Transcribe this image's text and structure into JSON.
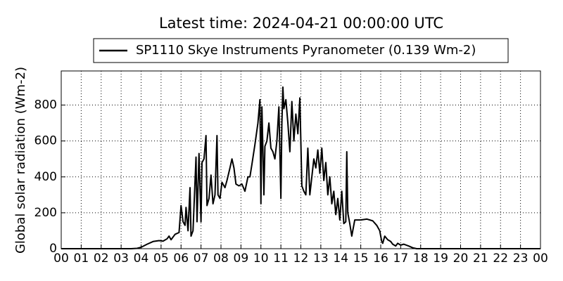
{
  "chart_data": {
    "type": "line",
    "title": "Latest time: 2024-04-21 00:00:00 UTC",
    "ylabel": "Global solar radiation (Wm-2)",
    "x": [
      0,
      3.5,
      3.8,
      4.0,
      4.3,
      4.6,
      4.9,
      5.1,
      5.3,
      5.4,
      5.5,
      5.7,
      5.9,
      6.0,
      6.1,
      6.2,
      6.25,
      6.35,
      6.45,
      6.5,
      6.6,
      6.75,
      6.8,
      6.9,
      7.0,
      7.05,
      7.15,
      7.25,
      7.3,
      7.4,
      7.5,
      7.6,
      7.7,
      7.8,
      7.85,
      7.95,
      8.05,
      8.2,
      8.3,
      8.45,
      8.55,
      8.65,
      8.75,
      8.9,
      9.05,
      9.2,
      9.35,
      9.45,
      9.55,
      9.7,
      9.85,
      9.95,
      10.0,
      10.05,
      10.15,
      10.2,
      10.3,
      10.4,
      10.5,
      10.6,
      10.7,
      10.8,
      10.9,
      11.0,
      11.05,
      11.1,
      11.15,
      11.25,
      11.35,
      11.45,
      11.55,
      11.65,
      11.75,
      11.85,
      11.95,
      12.05,
      12.15,
      12.25,
      12.35,
      12.45,
      12.55,
      12.65,
      12.75,
      12.85,
      12.95,
      13.05,
      13.15,
      13.25,
      13.35,
      13.45,
      13.55,
      13.65,
      13.75,
      13.85,
      13.95,
      14.05,
      14.15,
      14.25,
      14.3,
      14.35,
      14.45,
      14.55,
      14.7,
      15.0,
      15.3,
      15.6,
      15.8,
      15.95,
      16.05,
      16.1,
      16.2,
      16.35,
      16.5,
      16.6,
      16.75,
      16.85,
      17.0,
      17.15,
      17.4,
      17.6,
      17.8,
      24
    ],
    "series": [
      {
        "name": "SP1110 Skye Instruments Pyranometer (0.139 Wm-2)",
        "color": "#000000",
        "values": [
          0,
          0,
          2,
          8,
          25,
          40,
          45,
          42,
          55,
          70,
          50,
          80,
          90,
          240,
          150,
          130,
          230,
          100,
          340,
          70,
          100,
          510,
          150,
          530,
          150,
          480,
          500,
          630,
          240,
          280,
          410,
          250,
          300,
          630,
          300,
          280,
          370,
          340,
          380,
          450,
          500,
          450,
          360,
          350,
          360,
          320,
          400,
          400,
          470,
          580,
          700,
          830,
          250,
          790,
          300,
          570,
          600,
          700,
          560,
          540,
          500,
          600,
          790,
          280,
          700,
          900,
          780,
          830,
          700,
          540,
          820,
          600,
          750,
          640,
          840,
          350,
          320,
          300,
          560,
          300,
          400,
          500,
          450,
          550,
          420,
          560,
          380,
          480,
          300,
          400,
          250,
          320,
          190,
          280,
          160,
          320,
          140,
          150,
          540,
          200,
          140,
          70,
          160,
          160,
          165,
          155,
          130,
          100,
          40,
          30,
          70,
          50,
          40,
          25,
          15,
          30,
          20,
          25,
          15,
          5,
          0,
          0
        ]
      }
    ],
    "xlim": [
      0,
      24
    ],
    "ylim": [
      0,
      990
    ],
    "xticks": [
      {
        "value": 0,
        "label": "00"
      },
      {
        "value": 1,
        "label": "01"
      },
      {
        "value": 2,
        "label": "02"
      },
      {
        "value": 3,
        "label": "03"
      },
      {
        "value": 4,
        "label": "04"
      },
      {
        "value": 5,
        "label": "05"
      },
      {
        "value": 6,
        "label": "06"
      },
      {
        "value": 7,
        "label": "07"
      },
      {
        "value": 8,
        "label": "08"
      },
      {
        "value": 9,
        "label": "09"
      },
      {
        "value": 10,
        "label": "10"
      },
      {
        "value": 11,
        "label": "11"
      },
      {
        "value": 12,
        "label": "12"
      },
      {
        "value": 13,
        "label": "13"
      },
      {
        "value": 14,
        "label": "14"
      },
      {
        "value": 15,
        "label": "15"
      },
      {
        "value": 16,
        "label": "16"
      },
      {
        "value": 17,
        "label": "17"
      },
      {
        "value": 18,
        "label": "18"
      },
      {
        "value": 19,
        "label": "19"
      },
      {
        "value": 20,
        "label": "20"
      },
      {
        "value": 21,
        "label": "21"
      },
      {
        "value": 22,
        "label": "22"
      },
      {
        "value": 23,
        "label": "23"
      },
      {
        "value": 24,
        "label": "00"
      }
    ],
    "yticks": [
      0,
      200,
      400,
      600,
      800
    ],
    "grid": true,
    "legend": "top"
  }
}
